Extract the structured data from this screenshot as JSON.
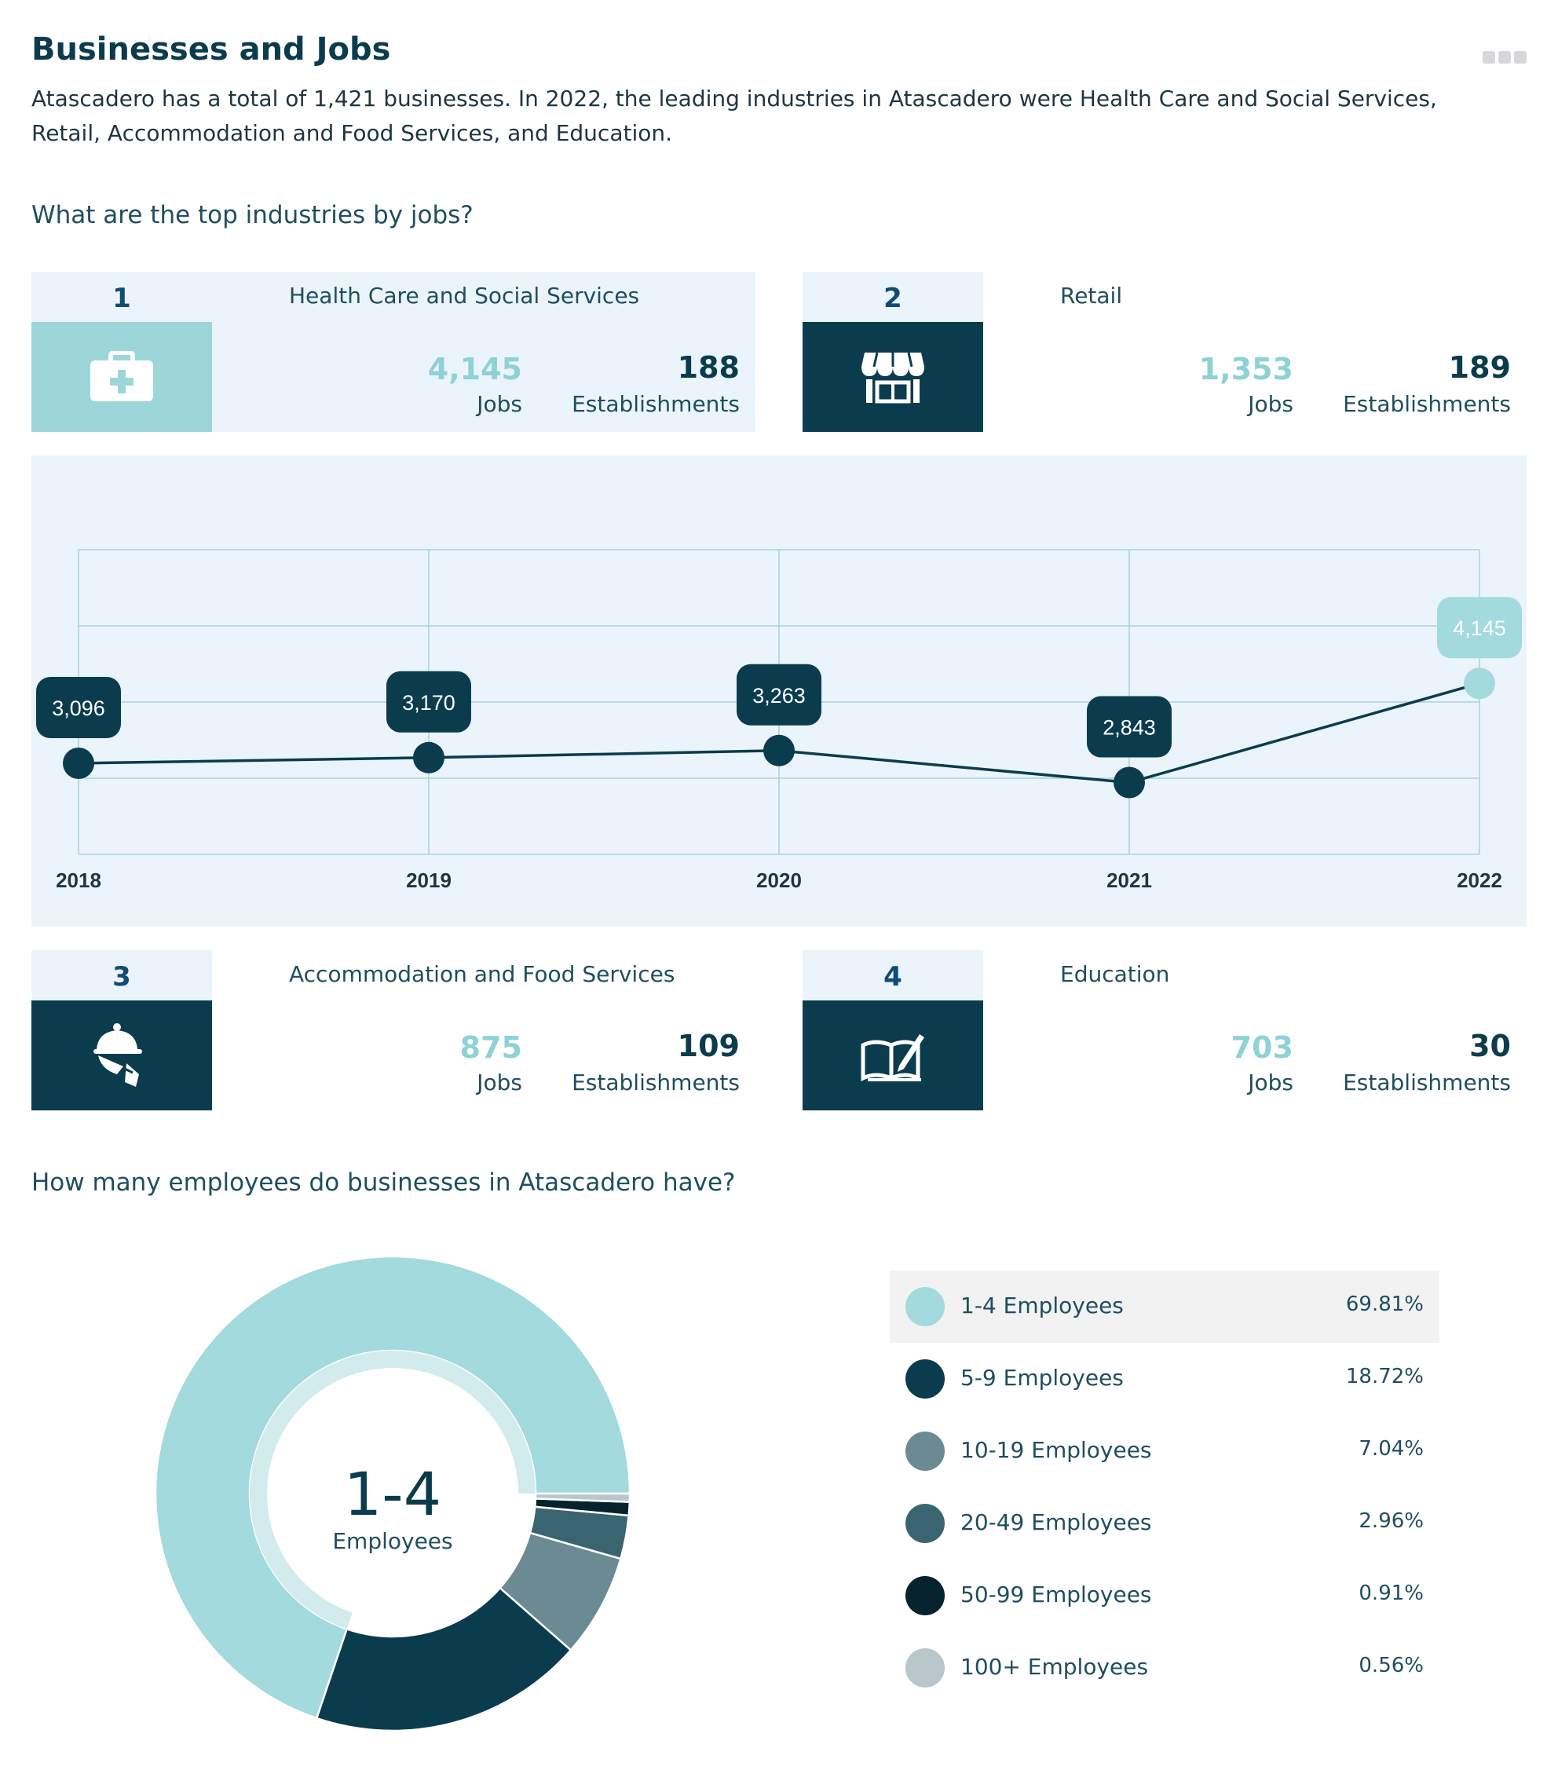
{
  "header": {
    "title": "Businesses and Jobs",
    "intro": "Atascadero has a total of 1,421 businesses. In 2022, the leading industries in Atascadero were Health Care and Social Services, Retail, Accommodation and Food Services, and Education.",
    "menu_icon": "ellipsis-icon"
  },
  "section1": {
    "question": "What are the top industries by jobs?"
  },
  "industries": [
    {
      "rank": "1",
      "name": "Health Care and Social Services",
      "jobs": "4,145",
      "jobs_label": "Jobs",
      "establishments": "188",
      "establishments_label": "Establishments",
      "icon": "first-aid-kit-icon",
      "icon_bg": "#9dd6d9",
      "icon_color": "#ffffff"
    },
    {
      "rank": "2",
      "name": "Retail",
      "jobs": "1,353",
      "jobs_label": "Jobs",
      "establishments": "189",
      "establishments_label": "Establishments",
      "icon": "storefront-icon",
      "icon_bg": "#0b3c4d",
      "icon_color": "#ffffff"
    },
    {
      "rank": "3",
      "name": "Accommodation and Food Services",
      "jobs": "875",
      "jobs_label": "Jobs",
      "establishments": "109",
      "establishments_label": "Establishments",
      "icon": "waiter-cloche-icon",
      "icon_bg": "#0b3c4d",
      "icon_color": "#ffffff"
    },
    {
      "rank": "4",
      "name": "Education",
      "jobs": "703",
      "jobs_label": "Jobs",
      "establishments": "30",
      "establishments_label": "Establishments",
      "icon": "open-book-pencil-icon",
      "icon_bg": "#0b3c4d",
      "icon_color": "#ffffff"
    }
  ],
  "section2": {
    "question": "How many employees do businesses in Atascadero have?"
  },
  "donut_center": {
    "value": "1-4",
    "label": "Employees"
  },
  "chart_data": [
    {
      "type": "line",
      "title": "",
      "series": [
        {
          "values": [
            3096,
            3170,
            3263,
            2843,
            4145
          ],
          "labels": [
            "3,096",
            "3,170",
            "3,263",
            "2,843",
            "4,145"
          ]
        }
      ],
      "x": [
        "2018",
        "2019",
        "2020",
        "2021",
        "2022"
      ],
      "ylim": [
        1900,
        5900
      ],
      "grid": true,
      "colors": {
        "line": "#0b3c4d",
        "point": "#0b3c4d",
        "highlight": "#a3dadd",
        "grid": "#a9d2dc"
      }
    },
    {
      "type": "pie",
      "title": "",
      "categories": [
        "1-4 Employees",
        "5-9 Employees",
        "10-19 Employees",
        "20-49 Employees",
        "50-99 Employees",
        "100+ Employees"
      ],
      "values": [
        69.81,
        18.72,
        7.04,
        2.96,
        0.91,
        0.56
      ],
      "value_labels": [
        "69.81%",
        "18.72%",
        "7.04%",
        "2.96%",
        "0.91%",
        "0.56%"
      ],
      "colors": [
        "#a3dadd",
        "#0b3c4d",
        "#6b8a93",
        "#3a6470",
        "#06222d",
        "#b8c7cc"
      ],
      "highlighted": "1-4 Employees",
      "highlight_inner_color": "#d2ecee"
    }
  ]
}
